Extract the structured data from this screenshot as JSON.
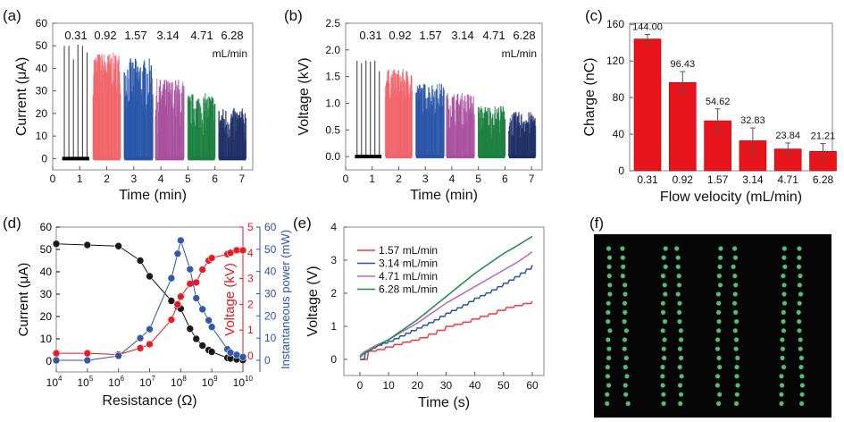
{
  "panel_labels": [
    "(a)",
    "(b)",
    "(c)",
    "(d)",
    "(e)",
    "(f)"
  ],
  "chart_data": [
    {
      "id": "a",
      "type": "bar",
      "title": "",
      "xlabel": "Time (min)",
      "ylabel": "Current (μA)",
      "xlim": [
        0,
        7.4
      ],
      "ylim": [
        -5,
        60
      ],
      "xticks": [
        "0",
        "1",
        "2",
        "3",
        "4",
        "5",
        "6",
        "7"
      ],
      "yticks": [
        "0",
        "10",
        "20",
        "30",
        "40",
        "50",
        "60"
      ],
      "annotations": [
        "0.31",
        "0.92",
        "1.57",
        "3.14",
        "4.71",
        "6.28"
      ],
      "unit_label": "mL/min",
      "series": [
        {
          "name": "0.31 mL/min",
          "color": "#000000",
          "t": [
            0.35,
            1.35
          ],
          "peaks": [
            50,
            50,
            44,
            50.5,
            50,
            47
          ]
        },
        {
          "name": "0.92 mL/min",
          "color": "#f0646a",
          "t": [
            1.5,
            2.5
          ],
          "max": 47,
          "min": 28
        },
        {
          "name": "1.57 mL/min",
          "color": "#2855a8",
          "t": [
            2.65,
            3.7
          ],
          "max": 44.5,
          "min": 18
        },
        {
          "name": "3.14 mL/min",
          "color": "#a8509e",
          "t": [
            3.8,
            4.85
          ],
          "max": 35.5,
          "min": 10
        },
        {
          "name": "4.71 mL/min",
          "color": "#1b8040",
          "t": [
            5.0,
            6.0
          ],
          "max": 29,
          "min": 10
        },
        {
          "name": "6.28 mL/min",
          "color": "#1e2f66",
          "t": [
            6.15,
            7.15
          ],
          "max": 22.5,
          "min": 5
        }
      ]
    },
    {
      "id": "b",
      "type": "bar",
      "xlabel": "Time (min)",
      "ylabel": "Voltage (kV)",
      "xlim": [
        0,
        7.4
      ],
      "ylim": [
        -0.25,
        2.5
      ],
      "xticks": [
        "0",
        "1",
        "2",
        "3",
        "4",
        "5",
        "6",
        "7"
      ],
      "yticks": [
        "0.0",
        "0.5",
        "1.0",
        "1.5",
        "2.0",
        "2.5"
      ],
      "annotations": [
        "0.31",
        "0.92",
        "1.57",
        "3.14",
        "4.71",
        "6.28"
      ],
      "unit_label": "mL/min",
      "series": [
        {
          "name": "0.31 mL/min",
          "color": "#000000",
          "t": [
            0.35,
            1.35
          ],
          "peaks": [
            1.8,
            1.75,
            1.8,
            1.78,
            1.8,
            1.6
          ]
        },
        {
          "name": "0.92 mL/min",
          "color": "#f0646a",
          "t": [
            1.5,
            2.5
          ],
          "max": 1.64,
          "min": 1.0
        },
        {
          "name": "1.57 mL/min",
          "color": "#2855a8",
          "t": [
            2.65,
            3.7
          ],
          "max": 1.38,
          "min": 0.75
        },
        {
          "name": "3.14 mL/min",
          "color": "#a8509e",
          "t": [
            3.8,
            4.85
          ],
          "max": 1.2,
          "min": 0.5
        },
        {
          "name": "4.71 mL/min",
          "color": "#1b8040",
          "t": [
            5.0,
            6.0
          ],
          "max": 0.96,
          "min": 0.35
        },
        {
          "name": "6.28 mL/min",
          "color": "#1e2f66",
          "t": [
            6.15,
            7.15
          ],
          "max": 0.84,
          "min": 0.3
        }
      ]
    },
    {
      "id": "c",
      "type": "bar",
      "xlabel": "Flow velocity (mL/min)",
      "ylabel": "Charge (nC)",
      "ylim": [
        0,
        170
      ],
      "yticks": [
        "0",
        "40",
        "80",
        "120",
        "160"
      ],
      "categories": [
        "0.31",
        "0.92",
        "1.57",
        "3.14",
        "4.71",
        "6.28"
      ],
      "values": [
        144.0,
        96.43,
        54.62,
        32.83,
        23.84,
        21.21
      ],
      "value_labels": [
        "144.00",
        "96.43",
        "54.62",
        "32.83",
        "23.84",
        "21.21"
      ],
      "errors": [
        5,
        12,
        13,
        14,
        6.5,
        8.5
      ],
      "color": "#e8141c"
    },
    {
      "id": "d",
      "type": "scatter",
      "xlabel": "Resistance (Ω)",
      "xscale": "log",
      "xlim_exp": [
        4,
        10
      ],
      "xticks": [
        "4",
        "5",
        "6",
        "7",
        "8",
        "9",
        "10"
      ],
      "axes": [
        {
          "label": "Current (μA)",
          "color": "#000000",
          "ylim": [
            -5,
            60
          ],
          "ticks": [
            "0",
            "10",
            "20",
            "30",
            "40",
            "50",
            "60"
          ]
        },
        {
          "label": "Voltage (kV)",
          "color": "#e8141c",
          "ylim": [
            -0.4,
            5
          ],
          "ticks": [
            "0",
            "1",
            "2",
            "3",
            "4",
            "5"
          ]
        },
        {
          "label": "Instantaneous power (mW)",
          "color": "#2855a8",
          "ylim": [
            -5,
            60
          ],
          "ticks": [
            "0",
            "10",
            "20",
            "30",
            "40",
            "50",
            "60"
          ]
        }
      ],
      "log_r": [
        4,
        5,
        6,
        6.7,
        7,
        7.7,
        7.9,
        8,
        8.3,
        8.5,
        8.7,
        8.9,
        9,
        9.5,
        9.6,
        9.8,
        10
      ],
      "series": [
        {
          "name": "Current",
          "axis": 0,
          "color": "#111111",
          "y": [
            52.5,
            52,
            51.5,
            45,
            38,
            27,
            24.5,
            23.5,
            14.5,
            10,
            7,
            5,
            4.2,
            1.5,
            1.2,
            0.8,
            0.5
          ]
        },
        {
          "name": "Voltage",
          "axis": 1,
          "color": "#e8141c",
          "y": [
            0.1,
            0.1,
            0.05,
            0.3,
            0.45,
            1.4,
            2.0,
            2.3,
            2.8,
            2.85,
            3.35,
            3.7,
            3.8,
            3.95,
            4.0,
            4.1,
            4.1
          ]
        },
        {
          "name": "Power",
          "axis": 2,
          "color": "#2855a8",
          "y": [
            0,
            0,
            2,
            10,
            14,
            37,
            48,
            54,
            41,
            28,
            23,
            18,
            15,
            5,
            3.5,
            2.5,
            1.5
          ]
        }
      ]
    },
    {
      "id": "e",
      "type": "line",
      "xlabel": "Time (s)",
      "ylabel": "Voltage (V)",
      "xlim": [
        -5,
        62
      ],
      "ylim": [
        -0.5,
        4
      ],
      "xticks": [
        "0",
        "10",
        "20",
        "30",
        "40",
        "50",
        "60"
      ],
      "yticks": [
        "0",
        "1",
        "2",
        "3",
        "4"
      ],
      "x": [
        0,
        1,
        3,
        5,
        10,
        15,
        20,
        25,
        30,
        35,
        40,
        45,
        50,
        55,
        60
      ],
      "series": [
        {
          "name": "1.57 mL/min",
          "color": "#f03a3a",
          "steps": true,
          "y": [
            0,
            0.15,
            0.25,
            0.27,
            0.4,
            0.52,
            0.62,
            0.8,
            1.0,
            1.1,
            1.25,
            1.38,
            1.55,
            1.65,
            1.75
          ]
        },
        {
          "name": "3.14 mL/min",
          "color": "#2855a8",
          "steps": true,
          "y": [
            0,
            0.2,
            0.3,
            0.4,
            0.55,
            0.75,
            0.95,
            1.15,
            1.4,
            1.6,
            1.85,
            2.05,
            2.3,
            2.55,
            2.85
          ]
        },
        {
          "name": "4.71 mL/min",
          "color": "#b866c0",
          "steps": false,
          "y": [
            0.1,
            0.2,
            0.3,
            0.4,
            0.6,
            0.85,
            1.1,
            1.4,
            1.7,
            1.95,
            2.2,
            2.45,
            2.7,
            2.95,
            3.25
          ]
        },
        {
          "name": "6.28 mL/min",
          "color": "#1b8a44",
          "steps": false,
          "y": [
            0.05,
            0.15,
            0.25,
            0.35,
            0.6,
            0.9,
            1.2,
            1.55,
            1.9,
            2.25,
            2.6,
            2.9,
            3.2,
            3.45,
            3.72
          ]
        }
      ]
    }
  ]
}
